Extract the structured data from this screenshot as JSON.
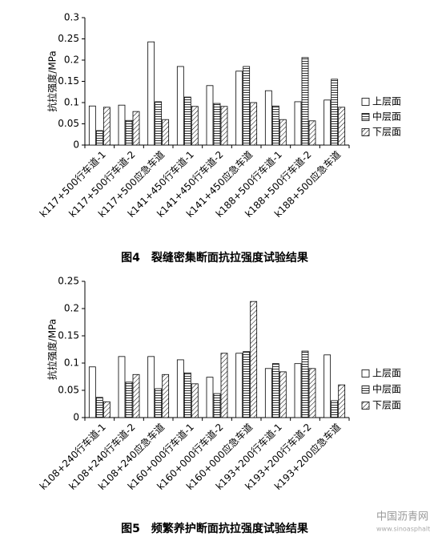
{
  "chart_data": [
    {
      "type": "bar",
      "title": "图4　裂缝密集断面抗拉强度试验结果",
      "y_label": "抗拉强度/MPa",
      "categories": [
        "k117+500行车道-1",
        "k117+500行车道-2",
        "k117+500应急车道",
        "k141+450行车道-1",
        "k141+450行车道-2",
        "k141+450应急车道",
        "k188+500行车道-1",
        "k188+500行车道-2",
        "k188+500应急车道"
      ],
      "series": [
        {
          "name": "上层面",
          "color": "#000000",
          "pattern": "none",
          "values": [
            0.092,
            0.094,
            0.243,
            0.185,
            0.14,
            0.174,
            0.128,
            0.102,
            0.106
          ]
        },
        {
          "name": "中层面",
          "color": "#000000",
          "pattern": "horizontal",
          "values": [
            0.034,
            0.058,
            0.102,
            0.113,
            0.098,
            0.185,
            0.092,
            0.206,
            0.155
          ]
        },
        {
          "name": "下层面",
          "color": "#000000",
          "pattern": "diagonal",
          "values": [
            0.089,
            0.079,
            0.06,
            0.091,
            0.091,
            0.1,
            0.06,
            0.057,
            0.089
          ]
        }
      ],
      "ylim": [
        0,
        0.3
      ],
      "yticks": [
        0,
        0.05,
        0.1,
        0.15,
        0.2,
        0.25,
        0.3
      ],
      "grid": false,
      "legend": "right"
    },
    {
      "type": "bar",
      "title": "图5　频繁养护断面抗拉强度试验结果",
      "y_label": "抗拉强度/MPa",
      "categories": [
        "k108+240行车道-1",
        "k108+240行车道-2",
        "k108+240应急车道",
        "k160+000行车道-1",
        "k160+000行车道-2",
        "k160+000应急车道",
        "k193+200行车道-1",
        "k193+200行车道-2",
        "k193+200应急车道"
      ],
      "series": [
        {
          "name": "上层面",
          "color": "#000000",
          "pattern": "none",
          "values": [
            0.093,
            0.112,
            0.112,
            0.106,
            0.074,
            0.118,
            0.09,
            0.099,
            0.115
          ]
        },
        {
          "name": "中层面",
          "color": "#000000",
          "pattern": "horizontal",
          "values": [
            0.037,
            0.065,
            0.053,
            0.082,
            0.044,
            0.121,
            0.099,
            0.122,
            0.031
          ]
        },
        {
          "name": "下层面",
          "color": "#000000",
          "pattern": "diagonal",
          "values": [
            0.029,
            0.079,
            0.079,
            0.062,
            0.118,
            0.213,
            0.084,
            0.09,
            0.06
          ]
        }
      ],
      "ylim": [
        0,
        0.25
      ],
      "yticks": [
        0,
        0.05,
        0.1,
        0.15,
        0.2,
        0.25
      ],
      "grid": false,
      "legend": "right"
    }
  ],
  "watermark": {
    "name": "中国沥青网",
    "url": "www.sinoasphalt.com"
  }
}
